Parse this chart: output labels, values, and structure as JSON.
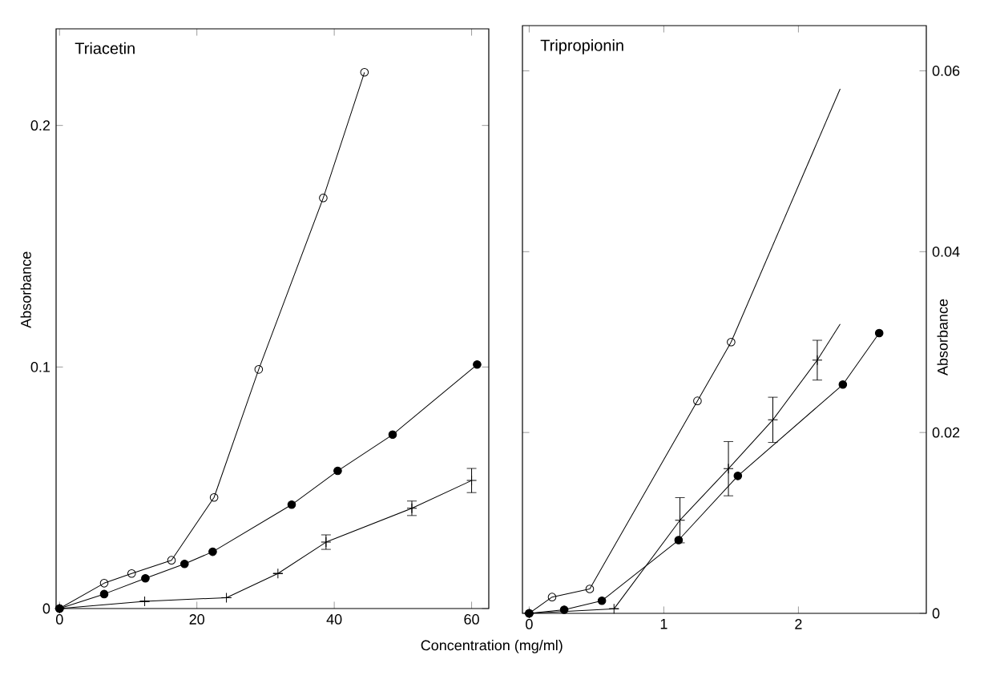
{
  "chart_data": [
    {
      "type": "line",
      "title": "Triacetin",
      "ylabel": "Absorbance",
      "xlabel": "Concentration (mg/ml)",
      "xlim": [
        -0.5,
        62.5
      ],
      "ylim": [
        0,
        0.24
      ],
      "xticks": [
        0,
        20,
        40,
        60
      ],
      "yticks": [
        0,
        0.1,
        0.2
      ],
      "series": [
        {
          "color": "#000000",
          "marker": "circle open",
          "x": [
            0,
            6.5,
            10.5,
            16.3,
            22.5,
            29,
            38.4,
            44.4
          ],
          "values": [
            0,
            0.0105,
            0.0145,
            0.02,
            0.046,
            0.099,
            0.17,
            0.222
          ]
        },
        {
          "color": "#000000",
          "marker": "circle",
          "x": [
            0,
            6.5,
            12.5,
            18.2,
            22.3,
            33.8,
            40.5,
            48.5,
            60.8
          ],
          "values": [
            0,
            0.006,
            0.0125,
            0.0185,
            0.0235,
            0.043,
            0.057,
            0.072,
            0.101
          ]
        },
        {
          "color": "#000000",
          "marker": "cross",
          "x": [
            0,
            12.4,
            24.3,
            31.8,
            38.8,
            51.3,
            60
          ],
          "values": [
            0,
            0.003,
            0.0045,
            0.0145,
            0.0275,
            0.0415,
            0.053
          ],
          "errors": [
            null,
            null,
            null,
            null,
            0.003,
            0.003,
            0.005
          ]
        }
      ]
    },
    {
      "type": "line",
      "title": "Tripropionin",
      "ylabel": "Absorbance",
      "xlim": [
        -0.05,
        2.95
      ],
      "ylim": [
        0,
        0.065
      ],
      "xticks": [
        0,
        1,
        2
      ],
      "yticks": [
        0,
        0.02,
        0.04,
        0.06
      ],
      "series": [
        {
          "color": "#000000",
          "marker": "circle open",
          "x": [
            0,
            0.17,
            0.45,
            1.25,
            1.5
          ],
          "values": [
            0,
            0.0018,
            0.0027,
            0.0235,
            0.03
          ]
        },
        {
          "color": "#000000",
          "marker": "none",
          "x": [
            1.5,
            2.31
          ],
          "values": [
            0.03,
            0.058
          ]
        },
        {
          "color": "#000000",
          "marker": "circle",
          "x": [
            0,
            0.26,
            0.54,
            1.11,
            1.55,
            2.33,
            2.6
          ],
          "values": [
            0,
            0.0004,
            0.0014,
            0.0081,
            0.0152,
            0.0253,
            0.031
          ]
        },
        {
          "color": "#000000",
          "marker": "cross",
          "x": [
            0,
            0.63,
            1.12,
            1.48,
            1.81,
            2.14
          ],
          "values": [
            0,
            0.0005,
            0.0103,
            0.016,
            0.0214,
            0.028
          ],
          "errors": [
            null,
            null,
            0.0025,
            0.003,
            0.0025,
            0.0022
          ]
        },
        {
          "color": "#000000",
          "marker": "none",
          "x": [
            2.14,
            2.31
          ],
          "values": [
            0.028,
            0.032
          ]
        }
      ]
    }
  ]
}
